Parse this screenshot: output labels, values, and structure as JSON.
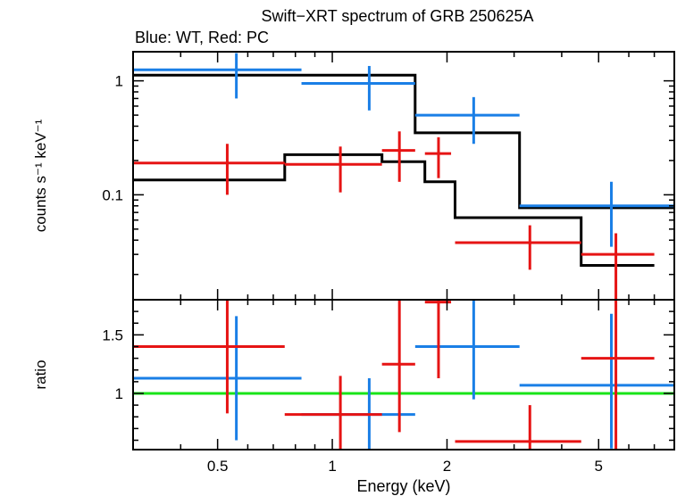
{
  "chart_data": {
    "type": "scatter",
    "title": "Swift−XRT spectrum of GRB 250625A",
    "subtitle": "Blue: WT, Red: PC",
    "xlabel": "Energy (keV)",
    "x_scale": "log",
    "xlim": [
      0.3,
      7.9
    ],
    "x_ticks": [
      0.5,
      1,
      2,
      5
    ],
    "x_tick_labels": [
      "0.5",
      "1",
      "2",
      "5"
    ],
    "colors": {
      "wt": "#1a7fe6",
      "pc": "#e61414",
      "model": "#000000",
      "unity": "#18e418"
    },
    "panels": {
      "spectrum": {
        "ylabel": "counts s⁻¹ keV⁻¹",
        "y_scale": "log",
        "ylim": [
          0.012,
          1.8
        ],
        "y_ticks": [
          0.1,
          1
        ],
        "y_tick_labels": [
          "0.1",
          "1"
        ],
        "series": [
          {
            "key": "wt",
            "points": [
              {
                "x": 0.56,
                "xlo": 0.3,
                "xhi": 0.83,
                "y": 1.25,
                "ylo": 0.7,
                "yhi": 1.75
              },
              {
                "x": 1.25,
                "xlo": 0.83,
                "xhi": 1.65,
                "y": 0.95,
                "ylo": 0.55,
                "yhi": 1.35
              },
              {
                "x": 2.35,
                "xlo": 1.65,
                "xhi": 3.1,
                "y": 0.5,
                "ylo": 0.28,
                "yhi": 0.72
              },
              {
                "x": 5.4,
                "xlo": 3.1,
                "xhi": 7.9,
                "y": 0.08,
                "ylo": 0.035,
                "yhi": 0.13
              }
            ]
          },
          {
            "key": "pc",
            "points": [
              {
                "x": 0.53,
                "xlo": 0.3,
                "xhi": 0.75,
                "y": 0.19,
                "ylo": 0.1,
                "yhi": 0.28
              },
              {
                "x": 1.05,
                "xlo": 0.75,
                "xhi": 1.35,
                "y": 0.185,
                "ylo": 0.105,
                "yhi": 0.265
              },
              {
                "x": 1.5,
                "xlo": 1.35,
                "xhi": 1.65,
                "y": 0.245,
                "ylo": 0.13,
                "yhi": 0.36
              },
              {
                "x": 1.9,
                "xlo": 1.75,
                "xhi": 2.05,
                "y": 0.23,
                "ylo": 0.14,
                "yhi": 0.32
              },
              {
                "x": 3.3,
                "xlo": 2.1,
                "xhi": 4.5,
                "y": 0.038,
                "ylo": 0.022,
                "yhi": 0.054
              },
              {
                "x": 5.55,
                "xlo": 4.5,
                "xhi": 7.0,
                "y": 0.03,
                "ylo": 0.012,
                "yhi": 0.046
              }
            ]
          }
        ],
        "models": [
          {
            "key": "wt",
            "bins": [
              {
                "xlo": 0.3,
                "xhi": 0.83,
                "y": 1.12
              },
              {
                "xlo": 0.83,
                "xhi": 1.65,
                "y": 1.12
              },
              {
                "xlo": 1.65,
                "xhi": 3.1,
                "y": 0.35
              },
              {
                "xlo": 3.1,
                "xhi": 7.9,
                "y": 0.077
              }
            ]
          },
          {
            "key": "pc",
            "bins": [
              {
                "xlo": 0.3,
                "xhi": 0.75,
                "y": 0.135
              },
              {
                "xlo": 0.75,
                "xhi": 1.35,
                "y": 0.225
              },
              {
                "xlo": 1.35,
                "xhi": 1.75,
                "y": 0.195
              },
              {
                "xlo": 1.75,
                "xhi": 2.1,
                "y": 0.13
              },
              {
                "xlo": 2.1,
                "xhi": 4.5,
                "y": 0.063
              },
              {
                "xlo": 4.5,
                "xhi": 7.0,
                "y": 0.024
              }
            ]
          }
        ]
      },
      "ratio": {
        "ylabel": "ratio",
        "y_scale": "linear",
        "ylim": [
          0.52,
          1.8
        ],
        "y_ticks": [
          1,
          1.5
        ],
        "y_tick_labels": [
          "1",
          "1.5"
        ],
        "unity_line": 1,
        "series": [
          {
            "key": "wt",
            "points": [
              {
                "x": 0.56,
                "xlo": 0.3,
                "xhi": 0.83,
                "y": 1.13,
                "ylo": 0.6,
                "yhi": 1.66
              },
              {
                "x": 1.25,
                "xlo": 0.83,
                "xhi": 1.65,
                "y": 0.82,
                "ylo": 0.52,
                "yhi": 1.13
              },
              {
                "x": 2.35,
                "xlo": 1.65,
                "xhi": 3.1,
                "y": 1.4,
                "ylo": 0.95,
                "yhi": 1.8
              },
              {
                "x": 5.4,
                "xlo": 3.1,
                "xhi": 7.9,
                "y": 1.07,
                "ylo": 0.53,
                "yhi": 1.68
              }
            ]
          },
          {
            "key": "pc",
            "points": [
              {
                "x": 0.53,
                "xlo": 0.3,
                "xhi": 0.75,
                "y": 1.4,
                "ylo": 0.83,
                "yhi": 1.8
              },
              {
                "x": 1.05,
                "xlo": 0.75,
                "xhi": 1.35,
                "y": 0.82,
                "ylo": 0.52,
                "yhi": 1.15
              },
              {
                "x": 1.5,
                "xlo": 1.35,
                "xhi": 1.65,
                "y": 1.25,
                "ylo": 0.67,
                "yhi": 1.8
              },
              {
                "x": 1.9,
                "xlo": 1.75,
                "xhi": 2.05,
                "y": 1.78,
                "ylo": 1.13,
                "yhi": 1.8
              },
              {
                "x": 3.3,
                "xlo": 2.1,
                "xhi": 4.5,
                "y": 0.59,
                "ylo": 0.52,
                "yhi": 0.9
              },
              {
                "x": 5.55,
                "xlo": 4.5,
                "xhi": 7.0,
                "y": 1.3,
                "ylo": 0.52,
                "yhi": 1.8
              }
            ]
          }
        ]
      }
    }
  }
}
